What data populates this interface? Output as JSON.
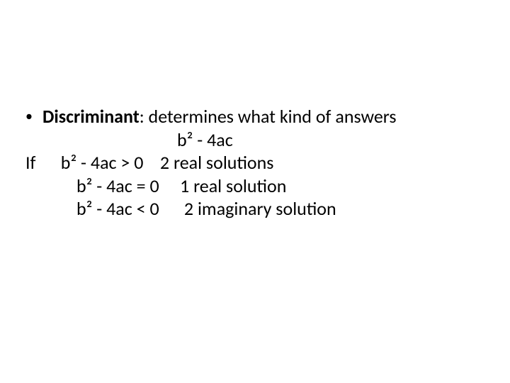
{
  "background_color": "#ffffff",
  "text_color": "#000000",
  "font_family": "Calibri",
  "font_size_pt": 26,
  "bullet": {
    "glyph": "•",
    "term": "Discriminant",
    "term_bold": true,
    "definition": ":  determines what kind of answers"
  },
  "formula": "b² - 4ac",
  "if_label": "If",
  "cases": [
    {
      "condition": "b² - 4ac > 0",
      "result": "2 real solutions"
    },
    {
      "condition": "b² - 4ac = 0",
      "result": "1 real solution"
    },
    {
      "condition": "b² - 4ac < 0",
      "result": "2 imaginary solution"
    }
  ]
}
